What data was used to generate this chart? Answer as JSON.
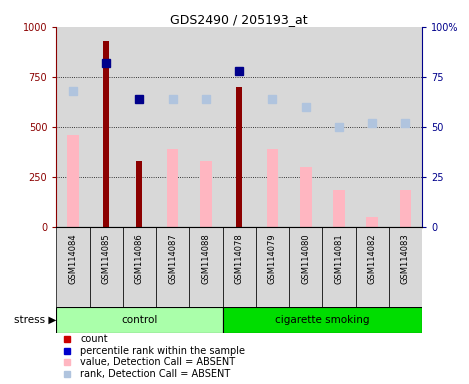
{
  "title": "GDS2490 / 205193_at",
  "samples": [
    "GSM114084",
    "GSM114085",
    "GSM114086",
    "GSM114087",
    "GSM114088",
    "GSM114078",
    "GSM114079",
    "GSM114080",
    "GSM114081",
    "GSM114082",
    "GSM114083"
  ],
  "count_bars": {
    "GSM114084": null,
    "GSM114085": 930,
    "GSM114086": 330,
    "GSM114087": null,
    "GSM114088": null,
    "GSM114078": 700,
    "GSM114079": null,
    "GSM114080": null,
    "GSM114081": null,
    "GSM114082": null,
    "GSM114083": null
  },
  "percentile_rank": {
    "GSM114084": null,
    "GSM114085": 82,
    "GSM114086": 64,
    "GSM114087": null,
    "GSM114088": null,
    "GSM114078": 78,
    "GSM114079": null,
    "GSM114080": null,
    "GSM114081": null,
    "GSM114082": null,
    "GSM114083": null
  },
  "value_absent": {
    "GSM114084": 460,
    "GSM114085": null,
    "GSM114086": null,
    "GSM114087": 390,
    "GSM114088": 330,
    "GSM114078": null,
    "GSM114079": 390,
    "GSM114080": 300,
    "GSM114081": 185,
    "GSM114082": 50,
    "GSM114083": 185
  },
  "rank_absent": {
    "GSM114084": 68,
    "GSM114085": null,
    "GSM114086": null,
    "GSM114087": 64,
    "GSM114088": 64,
    "GSM114078": null,
    "GSM114079": 64,
    "GSM114080": 60,
    "GSM114081": 50,
    "GSM114082": 52,
    "GSM114083": 52
  },
  "ylim_left": [
    0,
    1000
  ],
  "ylim_right": [
    0,
    100
  ],
  "yticks_left": [
    0,
    250,
    500,
    750,
    1000
  ],
  "ytick_labels_left": [
    "0",
    "250",
    "500",
    "750",
    "1000"
  ],
  "yticks_right": [
    0,
    25,
    50,
    75,
    100
  ],
  "ytick_labels_right": [
    "0",
    "25",
    "50",
    "75",
    "100%"
  ],
  "color_count": "#8B0000",
  "color_percentile": "#00008B",
  "color_value_absent": "#FFB6C1",
  "color_rank_absent": "#B0C4DE",
  "color_control": "#AAFFAA",
  "color_smoking": "#00DD00",
  "bar_width": 0.35,
  "count_bar_width": 0.18,
  "marker_size": 6,
  "legend_items": [
    {
      "color": "#CC0000",
      "label": "count"
    },
    {
      "color": "#0000CC",
      "label": "percentile rank within the sample"
    },
    {
      "color": "#FFB6C1",
      "label": "value, Detection Call = ABSENT"
    },
    {
      "color": "#B0C4DE",
      "label": "rank, Detection Call = ABSENT"
    }
  ]
}
